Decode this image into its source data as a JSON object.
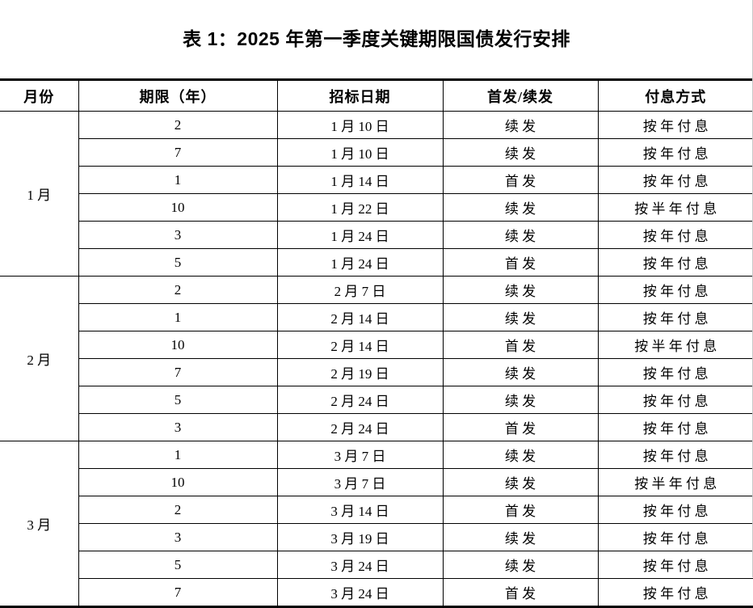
{
  "title": "表 1：2025 年第一季度关键期限国债发行安排",
  "table": {
    "headers": [
      "月份",
      "期限（年）",
      "招标日期",
      "首发/续发",
      "付息方式"
    ],
    "groups": [
      {
        "month": "1 月",
        "rows": [
          {
            "term": "2",
            "date": "1 月 10 日",
            "issue": "续 发",
            "interest": "按 年 付 息"
          },
          {
            "term": "7",
            "date": "1 月 10 日",
            "issue": "续 发",
            "interest": "按 年 付 息"
          },
          {
            "term": "1",
            "date": "1 月 14 日",
            "issue": "首 发",
            "interest": "按 年 付 息"
          },
          {
            "term": "10",
            "date": "1 月 22 日",
            "issue": "续 发",
            "interest": "按 半 年 付 息"
          },
          {
            "term": "3",
            "date": "1 月 24 日",
            "issue": "续 发",
            "interest": "按 年 付 息"
          },
          {
            "term": "5",
            "date": "1 月 24 日",
            "issue": "首 发",
            "interest": "按 年 付 息"
          }
        ]
      },
      {
        "month": "2 月",
        "rows": [
          {
            "term": "2",
            "date": "2 月 7 日",
            "issue": "续 发",
            "interest": "按 年 付 息"
          },
          {
            "term": "1",
            "date": "2 月 14 日",
            "issue": "续 发",
            "interest": "按 年 付 息"
          },
          {
            "term": "10",
            "date": "2 月 14 日",
            "issue": "首 发",
            "interest": "按 半 年 付 息"
          },
          {
            "term": "7",
            "date": "2 月 19 日",
            "issue": "续 发",
            "interest": "按 年 付 息"
          },
          {
            "term": "5",
            "date": "2 月 24 日",
            "issue": "续 发",
            "interest": "按 年 付 息"
          },
          {
            "term": "3",
            "date": "2 月 24 日",
            "issue": "首 发",
            "interest": "按 年 付 息"
          }
        ]
      },
      {
        "month": "3 月",
        "rows": [
          {
            "term": "1",
            "date": "3 月 7 日",
            "issue": "续 发",
            "interest": "按 年 付 息"
          },
          {
            "term": "10",
            "date": "3 月 7 日",
            "issue": "续 发",
            "interest": "按 半 年 付 息"
          },
          {
            "term": "2",
            "date": "3 月 14 日",
            "issue": "首 发",
            "interest": "按 年 付 息"
          },
          {
            "term": "3",
            "date": "3 月 19 日",
            "issue": "续 发",
            "interest": "按 年 付 息"
          },
          {
            "term": "5",
            "date": "3 月 24 日",
            "issue": "续 发",
            "interest": "按 年 付 息"
          },
          {
            "term": "7",
            "date": "3 月 24 日",
            "issue": "首 发",
            "interest": "按 年 付 息"
          }
        ]
      }
    ]
  }
}
